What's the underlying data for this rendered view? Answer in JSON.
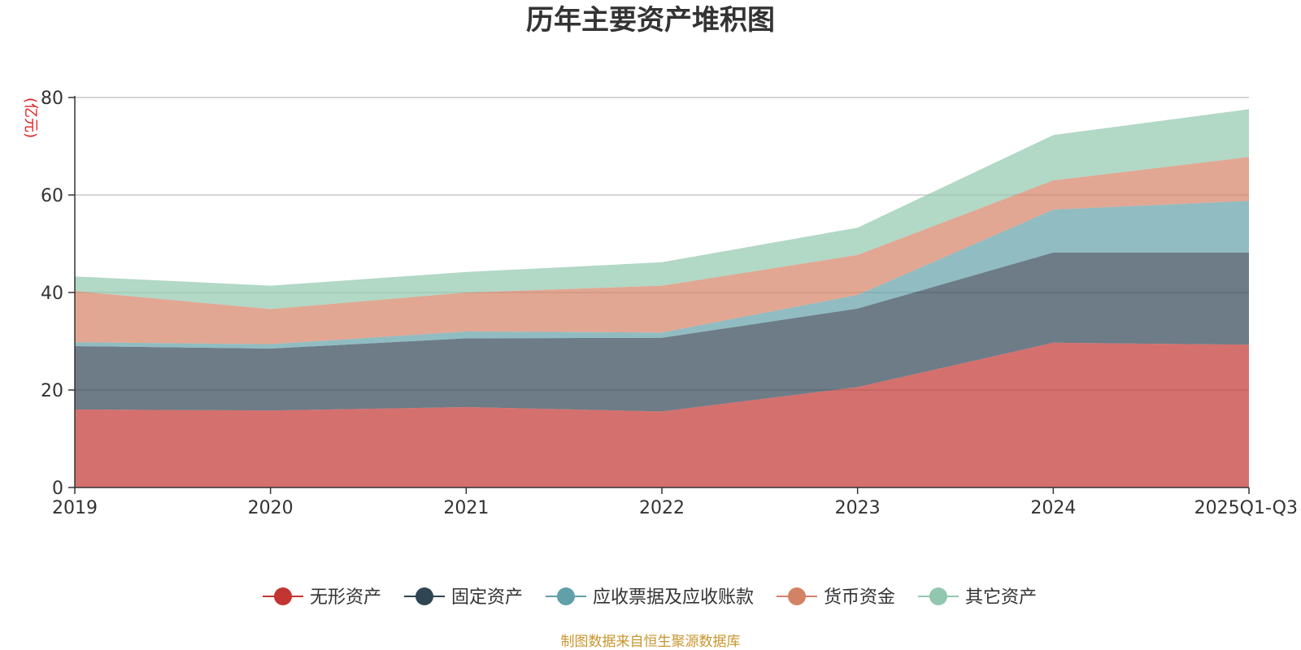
{
  "chart_data": {
    "type": "area",
    "stacked": true,
    "title": "历年主要资产堆积图",
    "unit_label": "(亿元)",
    "categories": [
      "2019",
      "2020",
      "2021",
      "2022",
      "2023",
      "2024",
      "2025Q1-Q3"
    ],
    "ylim": [
      0,
      80
    ],
    "yticks": [
      0,
      20,
      40,
      60,
      80
    ],
    "grid": true,
    "legend_position": "bottom",
    "series": [
      {
        "name": "无形资产",
        "color": "#c23531",
        "values": [
          16.0,
          15.8,
          16.5,
          15.6,
          20.6,
          29.7,
          29.3
        ]
      },
      {
        "name": "固定资产",
        "color": "#2f4554",
        "values": [
          13.0,
          12.7,
          14.1,
          15.1,
          16.1,
          18.5,
          18.9
        ]
      },
      {
        "name": "应收票据及应收账款",
        "color": "#61a0a8",
        "values": [
          0.8,
          0.9,
          1.4,
          1.1,
          2.8,
          8.8,
          10.6
        ]
      },
      {
        "name": "货币资金",
        "color": "#d48265",
        "values": [
          10.5,
          7.2,
          8.0,
          9.6,
          8.2,
          6.0,
          9.0
        ]
      },
      {
        "name": "其它资产",
        "color": "#91c7ae",
        "values": [
          3.0,
          4.8,
          4.2,
          4.8,
          5.6,
          9.3,
          9.8
        ]
      }
    ]
  },
  "source_text": "制图数据来自恒生聚源数据库"
}
